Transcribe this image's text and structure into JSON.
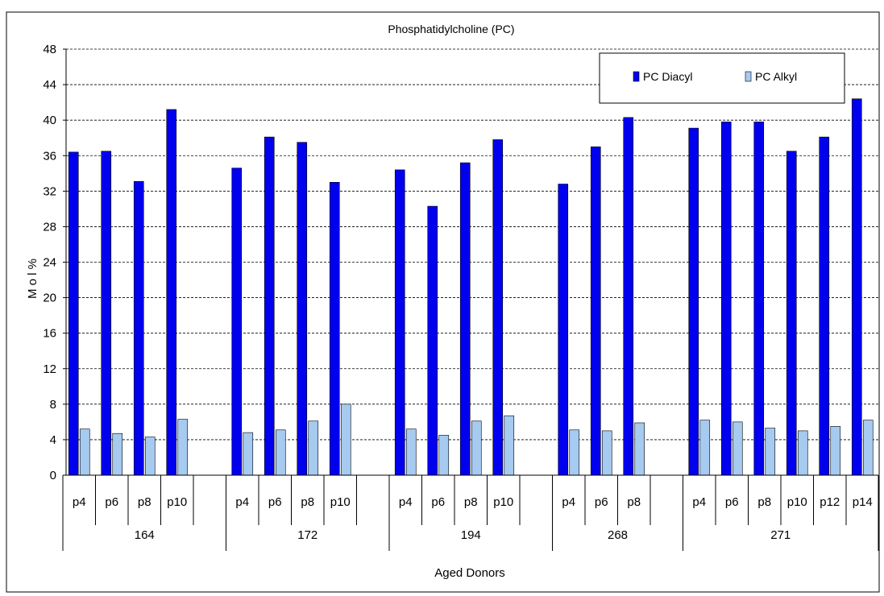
{
  "chart_data": {
    "type": "bar",
    "title": "Phosphatidylcholine (PC)",
    "xlabel": "Aged Donors",
    "ylabel": "M o l %",
    "ylim": [
      0,
      48
    ],
    "yticks": [
      0,
      4,
      8,
      12,
      16,
      20,
      24,
      28,
      32,
      36,
      40,
      44,
      48
    ],
    "grid": true,
    "legend_position": "top-right",
    "colors": {
      "PC Diacyl": "#0000ee",
      "PC Alkyl": "#a6caf0"
    },
    "groups": [
      {
        "donor": "164",
        "passages": [
          "p4",
          "p6",
          "p8",
          "p10"
        ]
      },
      {
        "donor": "172",
        "passages": [
          "p4",
          "p6",
          "p8",
          "p10"
        ]
      },
      {
        "donor": "194",
        "passages": [
          "p4",
          "p6",
          "p8",
          "p10"
        ]
      },
      {
        "donor": "268",
        "passages": [
          "p4",
          "p6",
          "p8"
        ]
      },
      {
        "donor": "271",
        "passages": [
          "p4",
          "p6",
          "p8",
          "p10",
          "p12",
          "p14"
        ]
      }
    ],
    "categories": [
      "164 p4",
      "164 p6",
      "164 p8",
      "164 p10",
      "172 p4",
      "172 p6",
      "172 p8",
      "172 p10",
      "194 p4",
      "194 p6",
      "194 p8",
      "194 p10",
      "268 p4",
      "268 p6",
      "268 p8",
      "271 p4",
      "271 p6",
      "271 p8",
      "271 p10",
      "271 p12",
      "271 p14"
    ],
    "series": [
      {
        "name": "PC Diacyl",
        "values": [
          36.4,
          36.5,
          33.1,
          41.2,
          34.6,
          38.1,
          37.5,
          33.0,
          34.4,
          30.3,
          35.2,
          37.8,
          32.8,
          37.0,
          40.3,
          39.1,
          39.8,
          39.8,
          36.5,
          38.1,
          42.4
        ]
      },
      {
        "name": "PC Alkyl",
        "values": [
          5.2,
          4.7,
          4.3,
          6.3,
          4.8,
          5.1,
          6.1,
          8.0,
          5.2,
          4.5,
          6.1,
          6.7,
          5.1,
          5.0,
          5.9,
          6.2,
          6.0,
          5.3,
          5.0,
          5.5,
          6.2
        ]
      }
    ]
  }
}
